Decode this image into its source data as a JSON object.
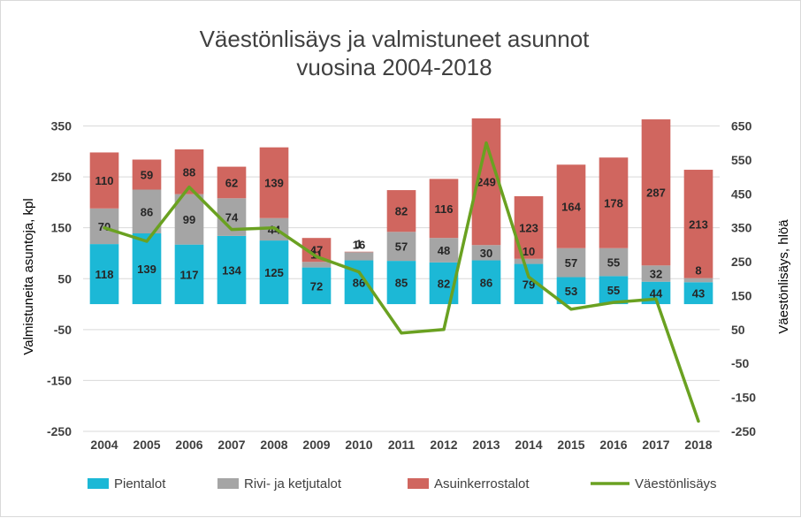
{
  "chart_data": {
    "type": "bar",
    "title_lines": [
      "Väestönlisäys ja valmistuneet asunnot",
      "vuosina 2004-2018"
    ],
    "xlabel": "",
    "ylabel": "Valmistuneita asuntoja, kpl",
    "y2label": "Väestönlisäys, hlöä",
    "categories": [
      "2004",
      "2005",
      "2006",
      "2007",
      "2008",
      "2009",
      "2010",
      "2011",
      "2012",
      "2013",
      "2014",
      "2015",
      "2016",
      "2017",
      "2018"
    ],
    "ylim": [
      -250,
      370
    ],
    "y_ticks": [
      "-250",
      "-150",
      "-50",
      "50",
      "150",
      "250",
      "350"
    ],
    "y2lim": [
      -250,
      680
    ],
    "y2_ticks": [
      "-250",
      "-150",
      "-50",
      "50",
      "150",
      "250",
      "350",
      "450",
      "550",
      "650"
    ],
    "stacked": true,
    "series": [
      {
        "name": "Pientalot",
        "kind": "bar",
        "color": "#1cb8d6",
        "values": [
          118,
          139,
          117,
          134,
          125,
          72,
          86,
          85,
          82,
          86,
          79,
          53,
          55,
          44,
          43
        ],
        "labels": [
          "118",
          "139",
          "117",
          "134",
          "125",
          "72",
          "86",
          "85",
          "82",
          "86",
          "79",
          "53",
          "55",
          "44",
          "43"
        ]
      },
      {
        "name": "Rivi- ja ketjutalot",
        "kind": "bar",
        "color": "#a5a5a5",
        "values": [
          70,
          86,
          99,
          74,
          44,
          11,
          16,
          57,
          48,
          30,
          10,
          57,
          55,
          32,
          8
        ],
        "labels": [
          "70",
          "86",
          "99",
          "74",
          "44",
          "11",
          "16",
          "57",
          "48",
          "30",
          "10",
          "57",
          "55",
          "32",
          "8"
        ]
      },
      {
        "name": "Asuinkerrostalot",
        "kind": "bar",
        "color": "#d0665f",
        "values": [
          110,
          59,
          88,
          62,
          139,
          47,
          1,
          82,
          116,
          249,
          123,
          164,
          178,
          287,
          213
        ],
        "labels": [
          "110",
          "59",
          "88",
          "62",
          "139",
          "47",
          "1",
          "82",
          "116",
          "249",
          "123",
          "164",
          "178",
          "287",
          "213"
        ]
      },
      {
        "name": "Väestönlisäys",
        "kind": "line",
        "axis": "secondary",
        "color": "#6aa121",
        "values": [
          350,
          310,
          470,
          345,
          350,
          265,
          220,
          40,
          50,
          600,
          205,
          110,
          130,
          140,
          -220
        ]
      }
    ],
    "legend_position": "bottom",
    "grid": true
  }
}
